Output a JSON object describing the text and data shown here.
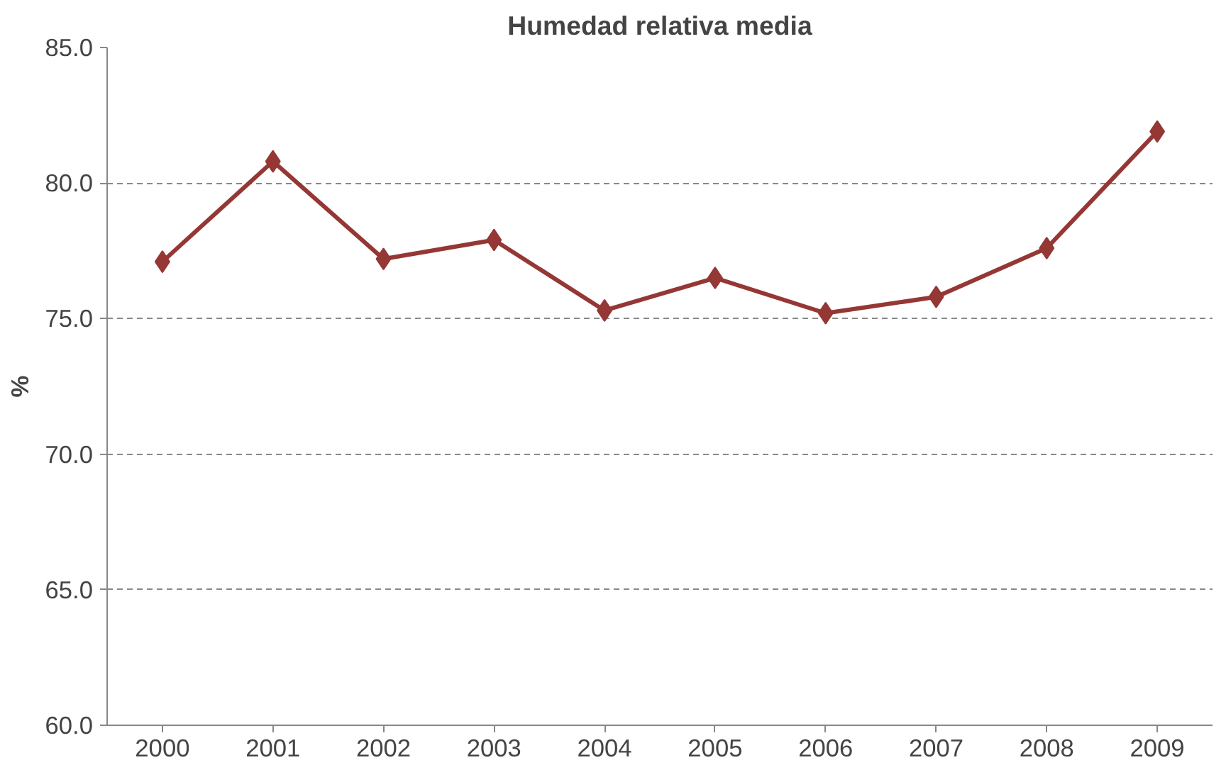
{
  "chart_data": {
    "type": "line",
    "title": "Humedad relativa media",
    "ylabel": "%",
    "categories": [
      "2000",
      "2001",
      "2002",
      "2003",
      "2004",
      "2005",
      "2006",
      "2007",
      "2008",
      "2009"
    ],
    "series": [
      {
        "color": "#953735",
        "values": [
          77.1,
          80.8,
          77.2,
          77.9,
          75.3,
          76.5,
          75.2,
          75.8,
          77.6,
          81.9
        ]
      }
    ],
    "ylim": [
      60,
      85
    ],
    "yticks": [
      {
        "value": 60,
        "label": "60.0"
      },
      {
        "value": 65,
        "label": "65.0"
      },
      {
        "value": 70,
        "label": "70.0"
      },
      {
        "value": 75,
        "label": "75.0"
      },
      {
        "value": 80,
        "label": "80.0"
      },
      {
        "value": 85,
        "label": "85.0"
      }
    ],
    "grid": "y",
    "marker": "diamond",
    "line_style": "solid"
  }
}
